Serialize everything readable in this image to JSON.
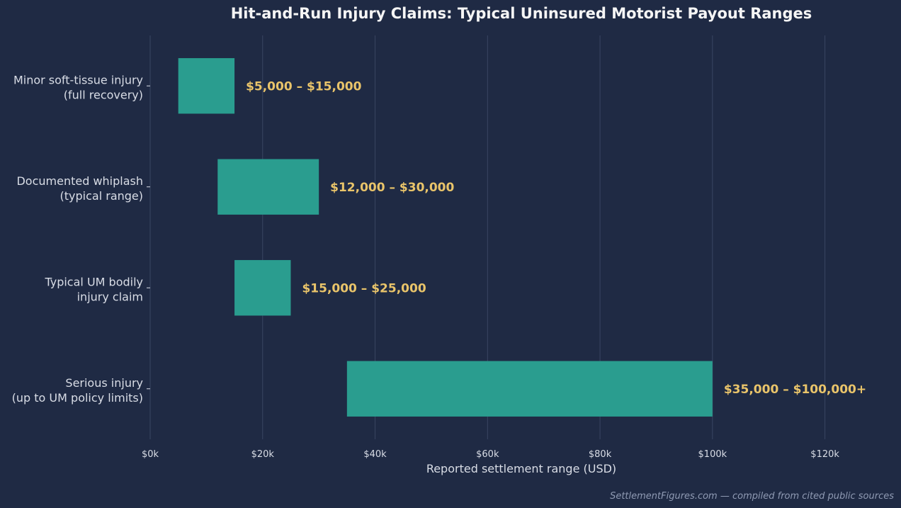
{
  "chart_data": {
    "type": "bar",
    "orientation": "horizontal-floating-range",
    "title": "Hit-and-Run Injury Claims: Typical Uninsured Motorist Payout Ranges",
    "xlabel": "Reported settlement range (USD)",
    "ylabel": "",
    "xlim": [
      0,
      130000
    ],
    "xticks": [
      0,
      20000,
      40000,
      60000,
      80000,
      100000,
      120000
    ],
    "xtick_labels": [
      "$0k",
      "$20k",
      "$40k",
      "$60k",
      "$80k",
      "$100k",
      "$120k"
    ],
    "grid": "vertical",
    "categories": [
      {
        "line1": "Minor soft-tissue injury",
        "line2": "(full recovery)"
      },
      {
        "line1": "Documented whiplash",
        "line2": "(typical range)"
      },
      {
        "line1": "Typical UM bodily",
        "line2": "injury claim"
      },
      {
        "line1": "Serious injury",
        "line2": "(up to UM policy limits)"
      }
    ],
    "ranges": [
      {
        "low": 5000,
        "high": 15000,
        "label": "$5,000 – $15,000"
      },
      {
        "low": 12000,
        "high": 30000,
        "label": "$12,000 – $30,000"
      },
      {
        "low": 15000,
        "high": 25000,
        "label": "$15,000 – $25,000"
      },
      {
        "low": 35000,
        "high": 100000,
        "label": "$35,000 – $100,000+"
      }
    ],
    "colors": {
      "background": "#1f2a44",
      "bar": "#2a9d8f",
      "range_label": "#e9c46a",
      "grid": "#3a4562"
    }
  },
  "footer": "SettlementFigures.com — compiled from cited public sources"
}
